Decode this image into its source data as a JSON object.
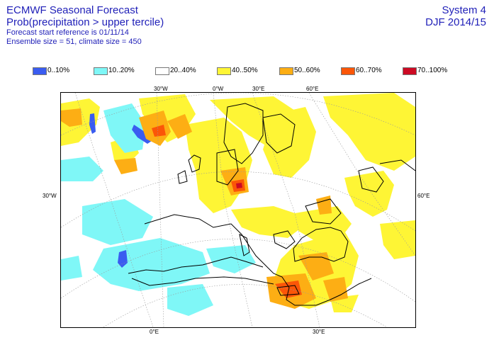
{
  "header": {
    "title": "ECMWF Seasonal Forecast",
    "subtitle": "Prob(precipitation > upper tercile)",
    "start_ref": "Forecast start reference is 01/11/14",
    "ensemble": "Ensemble size = 51, climate size = 450",
    "system": "System 4",
    "period": "DJF 2014/15"
  },
  "legend": [
    {
      "label": "0..10%",
      "color": "#3a5cf0"
    },
    {
      "label": "10..20%",
      "color": "#7ff7f7"
    },
    {
      "label": "20..40%",
      "color": "#ffffff"
    },
    {
      "label": "40..50%",
      "color": "#fef535"
    },
    {
      "label": "50..60%",
      "color": "#fdae14"
    },
    {
      "label": "60..70%",
      "color": "#fb5608"
    },
    {
      "label": "70..100%",
      "color": "#cc0a23"
    }
  ],
  "axis_labels": {
    "top": [
      "30°W",
      "0°W",
      "30°E",
      "60°E"
    ],
    "bottom": [
      "0°E",
      "30°E"
    ],
    "left": "30°W",
    "right": "60°E"
  }
}
